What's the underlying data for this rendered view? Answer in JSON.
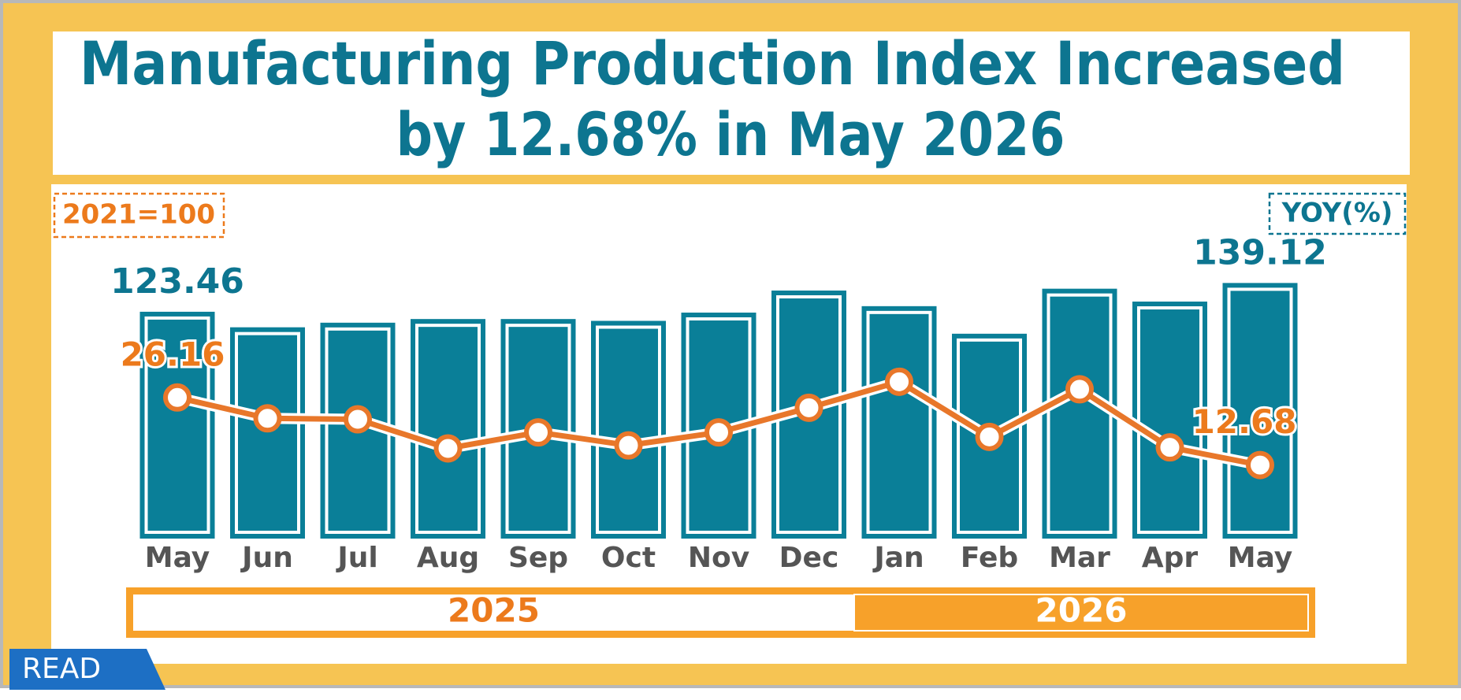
{
  "chart_data": {
    "type": "bar-line",
    "title_lines": [
      "Manufacturing Production Index Increased",
      "by 12.68% in May 2026"
    ],
    "base_label": "2021=100",
    "y2_label": "YOY(%)",
    "tag": "READ",
    "categories": [
      "May",
      "Jun",
      "Jul",
      "Aug",
      "Sep",
      "Oct",
      "Nov",
      "Dec",
      "Jan",
      "Feb",
      "Mar",
      "Apr",
      "May"
    ],
    "year_groups": [
      {
        "name": "2025",
        "count": 8
      },
      {
        "name": "2026",
        "count": 5
      }
    ],
    "series": [
      {
        "name": "Index",
        "color": "#0a7f98",
        "values": [
          123.46,
          115,
          117.5,
          119.5,
          119.5,
          118.5,
          123,
          135,
          126.5,
          111.5,
          136,
          129,
          139.12
        ],
        "value_labels": [
          "123.46",
          null,
          null,
          null,
          null,
          null,
          null,
          null,
          null,
          null,
          null,
          null,
          "139.12"
        ]
      },
      {
        "name": "YOY",
        "axis": "y2",
        "color": "#e8772a",
        "values": [
          26.16,
          22.0,
          21.8,
          16.0,
          19.2,
          16.6,
          19.2,
          24.1,
          29.3,
          18.3,
          27.8,
          16.2,
          12.68
        ],
        "value_labels": [
          "26.16",
          null,
          null,
          null,
          null,
          null,
          null,
          null,
          null,
          null,
          null,
          null,
          "12.68"
        ]
      }
    ],
    "ylim": [
      0,
      150
    ],
    "y2lim": [
      -2,
      53
    ]
  }
}
